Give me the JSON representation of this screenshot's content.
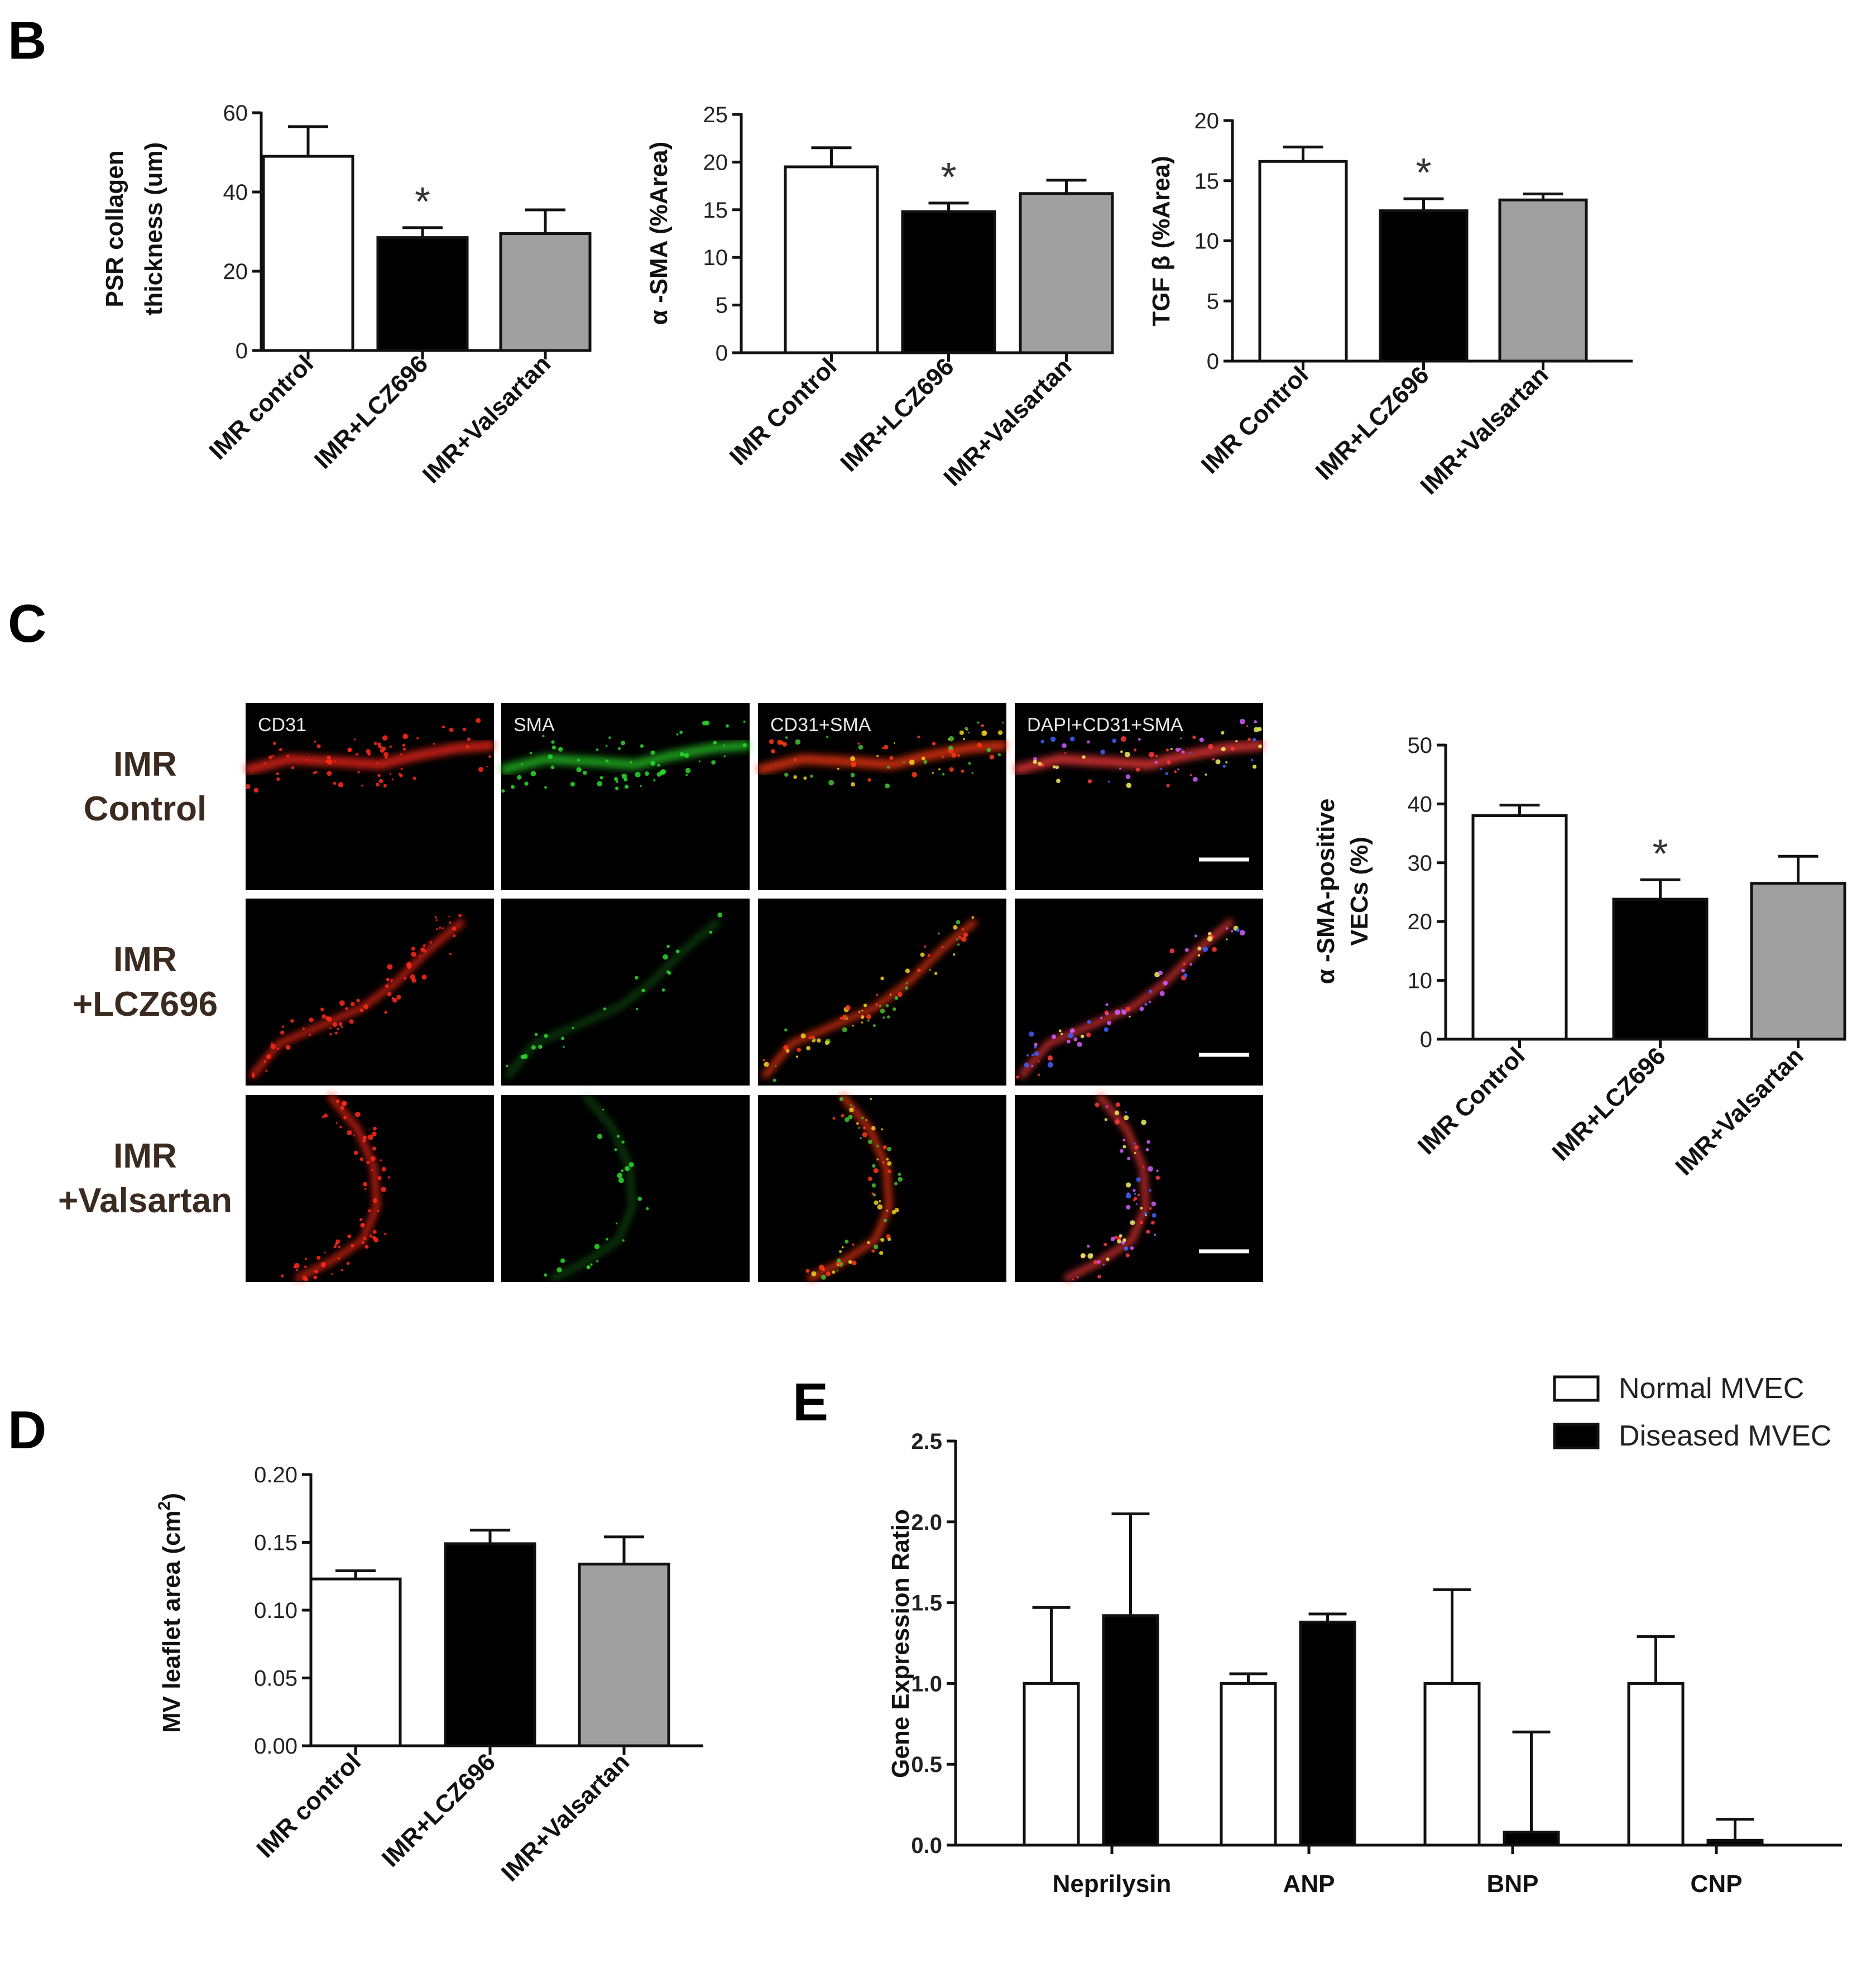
{
  "panel_letters": {
    "B": "B",
    "C": "C",
    "D": "D",
    "E": "E"
  },
  "colors": {
    "control": "#ffffff",
    "lcz696": "#000000",
    "valsartan": "#a0a0a0",
    "axis": "#111111"
  },
  "chart_data": [
    {
      "id": "B1",
      "type": "bar",
      "title": "",
      "ylabel_lines": [
        "PSR collagen",
        "thickness (um)"
      ],
      "categories": [
        "IMR control",
        "IMR+LCZ696",
        "IMR+Valsartan"
      ],
      "values": [
        49,
        28.5,
        29.5
      ],
      "errors": [
        7.5,
        2.5,
        6
      ],
      "significance": [
        "",
        "*",
        ""
      ],
      "ylim": [
        0,
        60
      ],
      "yticks": [
        "0",
        "20",
        "40",
        "60"
      ],
      "grid": false
    },
    {
      "id": "B2",
      "type": "bar",
      "title": "",
      "ylabel_lines": [
        "α -SMA (%Area)"
      ],
      "categories": [
        "IMR Control",
        "IMR+LCZ696",
        "IMR+Valsartan"
      ],
      "values": [
        19.5,
        14.8,
        16.7
      ],
      "errors": [
        2.0,
        0.9,
        1.4
      ],
      "significance": [
        "",
        "*",
        ""
      ],
      "ylim": [
        0,
        25
      ],
      "yticks": [
        "0",
        "5",
        "10",
        "15",
        "20",
        "25"
      ],
      "grid": false
    },
    {
      "id": "B3",
      "type": "bar",
      "title": "",
      "ylabel_lines": [
        "TGF β  (%Area)"
      ],
      "categories": [
        "IMR Control",
        "IMR+LCZ696",
        "IMR+Valsartan"
      ],
      "values": [
        16.6,
        12.5,
        13.4
      ],
      "errors": [
        1.2,
        1.0,
        0.5
      ],
      "significance": [
        "",
        "*",
        ""
      ],
      "ylim": [
        0,
        20
      ],
      "yticks": [
        "0",
        "5",
        "10",
        "15",
        "20"
      ],
      "grid": false
    },
    {
      "id": "C",
      "type": "bar",
      "title": "",
      "ylabel_lines": [
        "α -SMA-positive",
        "VECs (%)"
      ],
      "categories": [
        "IMR Control",
        "IMR+LCZ696",
        "IMR+Valsartan"
      ],
      "values": [
        38,
        23.8,
        26.5
      ],
      "errors": [
        1.8,
        3.3,
        4.6
      ],
      "significance": [
        "",
        "*",
        ""
      ],
      "ylim": [
        0,
        50
      ],
      "yticks": [
        "0",
        "10",
        "20",
        "30",
        "40",
        "50"
      ],
      "grid": false
    },
    {
      "id": "D",
      "type": "bar",
      "title": "",
      "ylabel_main": "MV leaflet area (cm",
      "ylabel_sup": "2",
      "ylabel_end": ")",
      "categories": [
        "IMR control",
        "IMR+LCZ696",
        "IMR+Valsartan"
      ],
      "values": [
        0.123,
        0.149,
        0.134
      ],
      "errors": [
        0.006,
        0.01,
        0.02
      ],
      "significance": [
        "",
        "",
        ""
      ],
      "ylim": [
        0,
        0.2
      ],
      "yticks": [
        "0.00",
        "0.05",
        "0.10",
        "0.15",
        "0.20"
      ],
      "grid": false
    },
    {
      "id": "E",
      "type": "bar",
      "title": "",
      "ylabel_lines": [
        "Gene Expression Ratio"
      ],
      "categories": [
        "Neprilysin",
        "ANP",
        "BNP",
        "CNP"
      ],
      "series": [
        {
          "name": "Normal MVEC",
          "values": [
            1.0,
            1.0,
            1.0,
            1.0
          ],
          "errors": [
            0.47,
            0.06,
            0.58,
            0.29
          ]
        },
        {
          "name": "Diseased MVEC",
          "values": [
            1.42,
            1.38,
            0.08,
            0.03
          ],
          "errors": [
            0.63,
            0.05,
            0.62,
            0.13
          ]
        }
      ],
      "ylim": [
        0,
        2.5
      ],
      "yticks": [
        "0.0",
        "0.5",
        "1.0",
        "1.5",
        "2.0",
        "2.5"
      ],
      "legend_position": "top-right",
      "grid": false
    }
  ],
  "micrographs": {
    "channels": [
      "CD31",
      "SMA",
      "CD31+SMA",
      "DAPI+CD31+SMA"
    ],
    "rows": [
      {
        "line1": "IMR",
        "line2": "Control"
      },
      {
        "line1": "IMR",
        "line2": "+LCZ696"
      },
      {
        "line1": "IMR",
        "line2": "+Valsartan"
      }
    ]
  }
}
